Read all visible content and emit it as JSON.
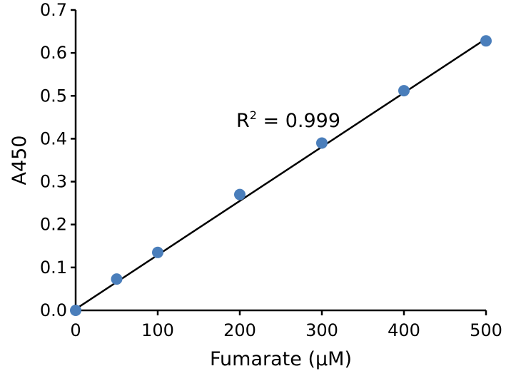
{
  "chart_data": {
    "type": "scatter",
    "title": "",
    "xlabel": "Fumarate (µM)",
    "ylabel": "A450",
    "xlim": [
      0,
      500
    ],
    "ylim": [
      0,
      0.7
    ],
    "x_ticks": [
      "0",
      "100",
      "200",
      "300",
      "400",
      "500"
    ],
    "y_ticks": [
      "0.0",
      "0.1",
      "0.2",
      "0.3",
      "0.4",
      "0.5",
      "0.6",
      "0.7"
    ],
    "grid": false,
    "legend": "none",
    "point_color": "#4a7ebb",
    "line_color": "#000000",
    "series": [
      {
        "x": [
          0,
          50,
          100,
          200,
          300,
          400,
          500
        ],
        "y": [
          0.0,
          0.073,
          0.135,
          0.27,
          0.39,
          0.512,
          0.628
        ]
      }
    ],
    "fit_line": {
      "x": [
        0,
        500
      ],
      "y": [
        0.003,
        0.633
      ]
    },
    "annotation": {
      "base": "R",
      "superscript": "2",
      "rest": " = 0.999"
    }
  }
}
